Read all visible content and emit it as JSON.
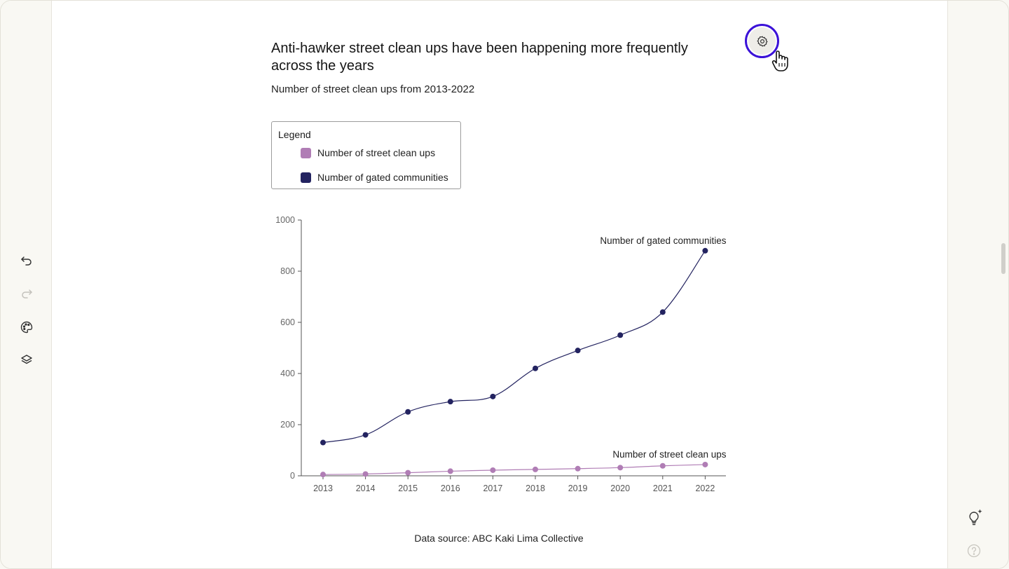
{
  "title": "Anti-hawker street clean ups have been happening more frequently across the years",
  "subtitle": "Number of street clean ups from 2013-2022",
  "legend": {
    "title": "Legend",
    "items": [
      {
        "label": "Number of street clean ups",
        "color": "#b07db5"
      },
      {
        "label": "Number of gated communities",
        "color": "#232360"
      }
    ]
  },
  "source": "Data source: ABC Kaki Lima Collective",
  "toolbar": {
    "undo_icon": "undo-icon",
    "redo_icon": "redo-icon",
    "palette_icon": "palette-icon",
    "layers_icon": "layers-icon",
    "settings_icon": "gear-icon",
    "hint_icon": "lightbulb-icon",
    "help_icon": "help-icon"
  },
  "colors": {
    "accent_ring": "#3b12d8",
    "clean_ups": "#b07db5",
    "gated": "#232360"
  },
  "chart_data": {
    "type": "line",
    "x": [
      "2013",
      "2014",
      "2015",
      "2016",
      "2017",
      "2018",
      "2019",
      "2020",
      "2021",
      "2022"
    ],
    "series": [
      {
        "name": "Number of gated communities",
        "values": [
          130,
          160,
          250,
          290,
          310,
          420,
          490,
          550,
          640,
          880
        ]
      },
      {
        "name": "Number of street clean ups",
        "values": [
          5,
          7,
          12,
          18,
          22,
          25,
          28,
          32,
          39,
          44
        ]
      }
    ],
    "yticks": [
      0,
      200,
      400,
      600,
      800,
      1000
    ],
    "ylim": [
      0,
      1000
    ],
    "grid": false,
    "series_labels": [
      "Number of gated communities",
      "Number of street clean ups"
    ]
  }
}
